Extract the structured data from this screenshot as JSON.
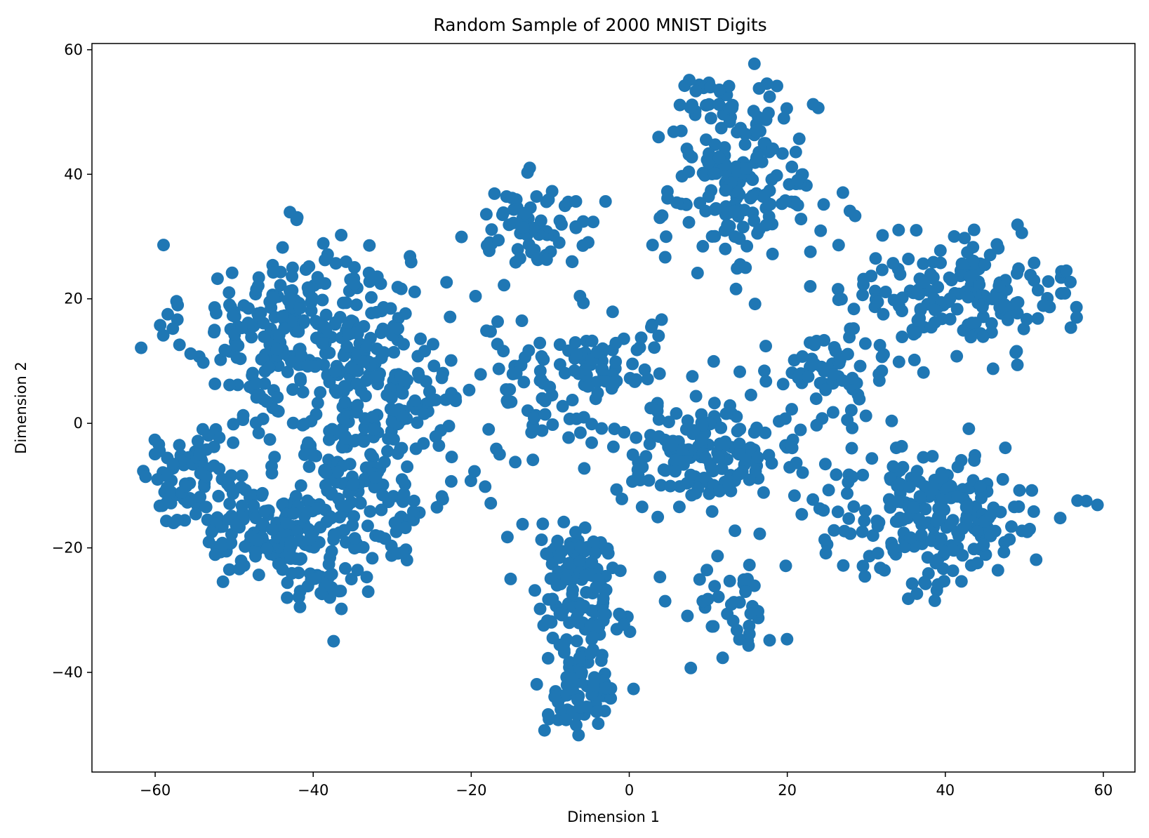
{
  "chart_data": {
    "type": "scatter",
    "title": "Random Sample of 2000 MNIST Digits",
    "xlabel": "Dimension 1",
    "ylabel": "Dimension 2",
    "xlim": [
      -68,
      64
    ],
    "ylim": [
      -56,
      61
    ],
    "xticks": [
      -60,
      -40,
      -20,
      0,
      20,
      40,
      60
    ],
    "yticks": [
      -40,
      -20,
      0,
      20,
      40,
      60
    ],
    "xtick_labels": [
      "−60",
      "−40",
      "−20",
      "0",
      "20",
      "40",
      "60"
    ],
    "ytick_labels": [
      "−40",
      "−20",
      "0",
      "20",
      "40",
      "60"
    ],
    "grid": false,
    "point_color": "#1f77b4",
    "n_points": 2000,
    "clusters": [
      {
        "center": [
          -42,
          15
        ],
        "spread": [
          7,
          7
        ],
        "count": 260
      },
      {
        "center": [
          -30,
          5
        ],
        "spread": [
          6,
          9
        ],
        "count": 150
      },
      {
        "center": [
          -36,
          -12
        ],
        "spread": [
          7,
          7
        ],
        "count": 160
      },
      {
        "center": [
          -55,
          -9
        ],
        "spread": [
          3.5,
          3.5
        ],
        "count": 80
      },
      {
        "center": [
          -46,
          -18
        ],
        "spread": [
          3.5,
          3
        ],
        "count": 90
      },
      {
        "center": [
          -40,
          -24
        ],
        "spread": [
          3,
          3
        ],
        "count": 40
      },
      {
        "center": [
          -12,
          32
        ],
        "spread": [
          4,
          3.5
        ],
        "count": 70
      },
      {
        "center": [
          14,
          38
        ],
        "spread": [
          5,
          7
        ],
        "count": 170
      },
      {
        "center": [
          10,
          52
        ],
        "spread": [
          2.5,
          2
        ],
        "count": 25
      },
      {
        "center": [
          42,
          21
        ],
        "spread": [
          7,
          4.5
        ],
        "count": 170
      },
      {
        "center": [
          -5,
          10
        ],
        "spread": [
          6,
          4
        ],
        "count": 70
      },
      {
        "center": [
          -8,
          2
        ],
        "spread": [
          6,
          6
        ],
        "count": 50
      },
      {
        "center": [
          10,
          -5
        ],
        "spread": [
          6,
          4
        ],
        "count": 150
      },
      {
        "center": [
          25,
          7
        ],
        "spread": [
          4,
          3
        ],
        "count": 60
      },
      {
        "center": [
          38,
          -15
        ],
        "spread": [
          8,
          6
        ],
        "count": 220
      },
      {
        "center": [
          -7,
          -22
        ],
        "spread": [
          2.5,
          3
        ],
        "count": 60
      },
      {
        "center": [
          -6,
          -33
        ],
        "spread": [
          3,
          5
        ],
        "count": 80
      },
      {
        "center": [
          -6,
          -44
        ],
        "spread": [
          2.5,
          3
        ],
        "count": 55
      },
      {
        "center": [
          12,
          -30
        ],
        "spread": [
          3,
          4
        ],
        "count": 40
      }
    ]
  }
}
